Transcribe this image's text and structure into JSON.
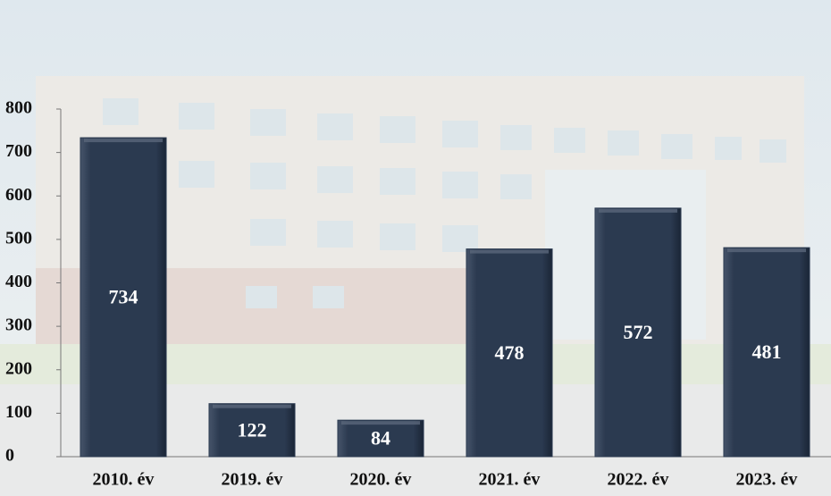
{
  "chart_data": {
    "type": "bar",
    "categories": [
      "2010. év",
      "2019. év",
      "2020. év",
      "2021. év",
      "2022. év",
      "2023. év"
    ],
    "values": [
      734,
      122,
      84,
      478,
      572,
      481
    ],
    "color": "#2b3a50",
    "ylim": [
      0,
      800
    ],
    "yticks": [
      0,
      100,
      200,
      300,
      400,
      500,
      600,
      700,
      800
    ],
    "grid": false
  }
}
